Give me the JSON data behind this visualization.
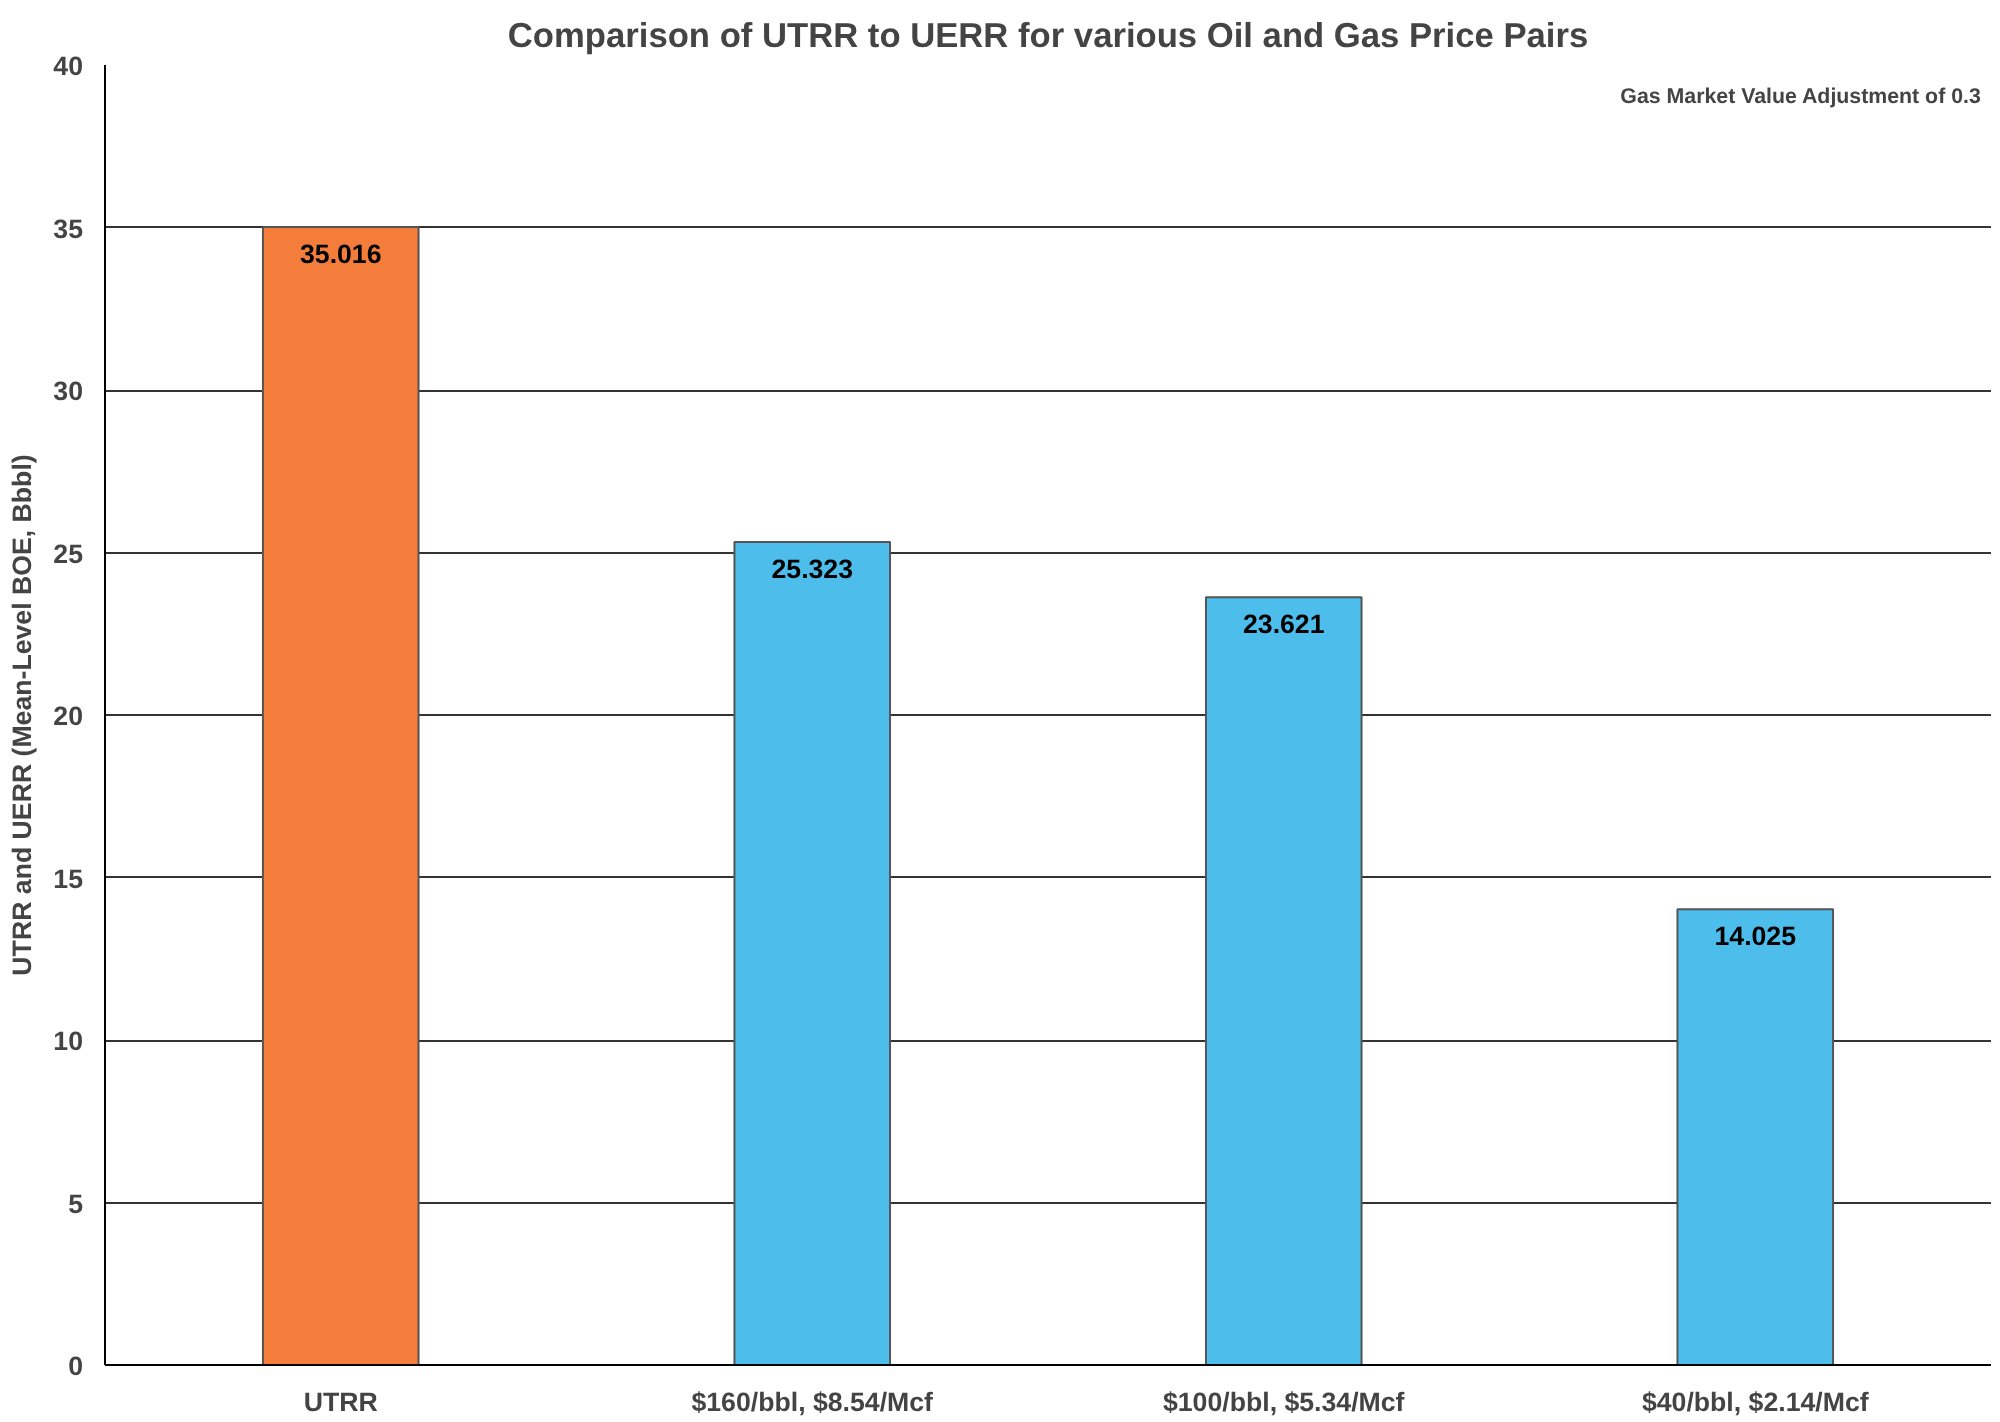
{
  "chart_data": {
    "type": "bar",
    "title": "Comparison of UTRR to UERR for various Oil and Gas Price Pairs",
    "ylabel": "UTRR and UERR (Mean-Level BOE, Bbbl)",
    "categories": [
      "UTRR",
      "$160/bbl, $8.54/Mcf",
      "$100/bbl, $5.34/Mcf",
      "$40/bbl, $2.14/Mcf"
    ],
    "values": [
      35.016,
      25.323,
      23.621,
      14.025
    ],
    "colors": [
      "#f57d3b",
      "#4dbdeb",
      "#4dbdeb",
      "#4dbdeb"
    ],
    "ylim": [
      0,
      40
    ],
    "yticks": [
      0,
      5,
      10,
      15,
      20,
      25,
      30,
      35,
      40
    ],
    "grid": "y",
    "data_labels": true,
    "annotations": [
      "Gas Market Value Adjustment of 0.3"
    ]
  }
}
